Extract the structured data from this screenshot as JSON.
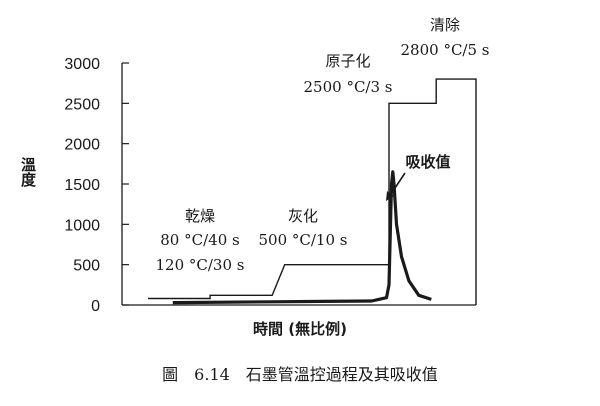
{
  "chart_data": {
    "type": "line",
    "title": "",
    "xlabel": "時間 (無比例)",
    "ylabel": "溫度",
    "ylim": [
      0,
      3000
    ],
    "yticks": [
      0,
      500,
      1000,
      1500,
      2000,
      2500,
      3000
    ],
    "ytick_labels": [
      "0",
      "500",
      "1000",
      "1500",
      "2000",
      "2500",
      "3000"
    ],
    "x_scale": "unscaled time (no numeric ticks)",
    "grid": false,
    "series": [
      {
        "name": "",
        "points": [
          [
            0.0,
            80
          ],
          [
            0.25,
            80
          ],
          [
            0.25,
            120
          ],
          [
            0.5,
            120
          ],
          [
            0.55,
            500
          ],
          [
            0.97,
            500
          ],
          [
            0.97,
            2500
          ],
          [
            1.16,
            2500
          ],
          [
            1.16,
            2800
          ],
          [
            1.32,
            2800
          ],
          [
            1.32,
            0
          ]
        ]
      },
      {
        "name": "吸收值",
        "points": [
          [
            0.1,
            30
          ],
          [
            0.5,
            40
          ],
          [
            0.7,
            45
          ],
          [
            0.9,
            50
          ],
          [
            0.96,
            90
          ],
          [
            0.97,
            250
          ],
          [
            0.975,
            900
          ],
          [
            0.98,
            1500
          ],
          [
            0.985,
            1650
          ],
          [
            0.99,
            1500
          ],
          [
            1.0,
            1000
          ],
          [
            1.02,
            600
          ],
          [
            1.05,
            300
          ],
          [
            1.09,
            120
          ],
          [
            1.14,
            70
          ]
        ]
      }
    ],
    "annotations": {
      "drying": {
        "title": "乾燥",
        "line1": "80 °C/40 s",
        "line2": "120 °C/30 s"
      },
      "ashing": {
        "title": "灰化",
        "line1": "500 °C/10 s"
      },
      "atomization": {
        "title": "原子化",
        "line1": "2500 °C/3 s"
      },
      "cleaning": {
        "title": "清除",
        "line1": "2800 °C/5 s"
      },
      "absorbance": {
        "label": "吸收值"
      }
    }
  },
  "caption": "圖　6.14　石墨管溫控過程及其吸收值"
}
